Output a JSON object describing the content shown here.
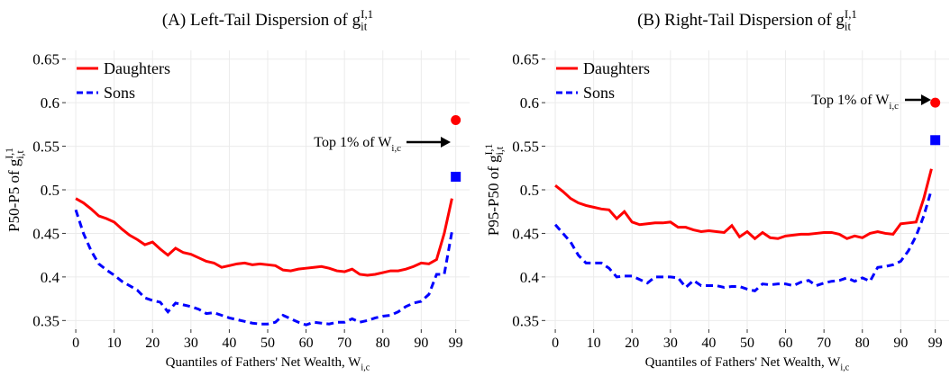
{
  "chart_data": [
    {
      "type": "line",
      "title": "(A) Left-Tail Dispersion of ",
      "title_var": "g",
      "title_sub": "it",
      "title_sup": "I,1",
      "ylabel": "P50-P5 of g",
      "ylabel_sup": "I,1",
      "ylabel_sub": "i,t",
      "xlabel": "Quantiles of Fathers' Net Wealth, W",
      "xlabel_sub": "i,c",
      "annotation": "Top 1% of W",
      "annotation_sub": "i,c",
      "legend": "upper left",
      "grid": true,
      "xlim": [
        -2.6,
        102.6
      ],
      "xticks": [
        0,
        10,
        20,
        30,
        40,
        50,
        60,
        70,
        80,
        90,
        99
      ],
      "ylim": [
        0.34,
        0.66
      ],
      "yticks": [
        0.35,
        0.4,
        0.45,
        0.5,
        0.55,
        0.6,
        0.65
      ],
      "x": [
        0,
        2,
        4,
        6,
        8,
        10,
        12,
        14,
        16,
        18,
        20,
        22,
        24,
        26,
        28,
        30,
        32,
        34,
        36,
        38,
        40,
        42,
        44,
        46,
        48,
        50,
        52,
        54,
        56,
        58,
        60,
        62,
        64,
        66,
        68,
        70,
        72,
        74,
        76,
        78,
        80,
        82,
        84,
        86,
        88,
        90,
        92,
        94,
        96,
        98
      ],
      "top1_x": 99,
      "series": [
        {
          "name": "Daughters",
          "color": "#ff0000",
          "dash": "solid",
          "marker": "circle",
          "top1": 0.58,
          "values": [
            0.49,
            0.485,
            0.478,
            0.47,
            0.467,
            0.463,
            0.455,
            0.448,
            0.443,
            0.437,
            0.44,
            0.432,
            0.425,
            0.433,
            0.428,
            0.426,
            0.422,
            0.418,
            0.416,
            0.411,
            0.413,
            0.415,
            0.416,
            0.414,
            0.415,
            0.414,
            0.413,
            0.408,
            0.407,
            0.409,
            0.41,
            0.411,
            0.412,
            0.41,
            0.407,
            0.406,
            0.409,
            0.403,
            0.402,
            0.403,
            0.405,
            0.407,
            0.407,
            0.409,
            0.412,
            0.416,
            0.415,
            0.42,
            0.45,
            0.49
          ]
        },
        {
          "name": "Sons",
          "color": "#0000ff",
          "dash": "dashed",
          "marker": "square",
          "top1": 0.515,
          "values": [
            0.477,
            0.45,
            0.43,
            0.415,
            0.408,
            0.402,
            0.395,
            0.39,
            0.385,
            0.376,
            0.373,
            0.371,
            0.36,
            0.37,
            0.368,
            0.366,
            0.363,
            0.358,
            0.359,
            0.356,
            0.353,
            0.351,
            0.349,
            0.347,
            0.346,
            0.346,
            0.348,
            0.356,
            0.352,
            0.348,
            0.345,
            0.348,
            0.347,
            0.346,
            0.348,
            0.348,
            0.352,
            0.348,
            0.35,
            0.353,
            0.355,
            0.356,
            0.36,
            0.366,
            0.37,
            0.372,
            0.38,
            0.403,
            0.403,
            0.452
          ]
        }
      ]
    },
    {
      "type": "line",
      "title": "(B) Right-Tail Dispersion of ",
      "title_var": "g",
      "title_sub": "it",
      "title_sup": "I,1",
      "ylabel": "P95-P50 of g",
      "ylabel_sup": "I,1",
      "ylabel_sub": "i,t",
      "xlabel": "Quantiles of Fathers' Net Wealth, W",
      "xlabel_sub": "i,c",
      "annotation": "Top 1% of W",
      "annotation_sub": "i,c",
      "legend": "upper left",
      "grid": true,
      "xlim": [
        -2.6,
        102.6
      ],
      "xticks": [
        0,
        10,
        20,
        30,
        40,
        50,
        60,
        70,
        80,
        90,
        99
      ],
      "ylim": [
        0.34,
        0.66
      ],
      "yticks": [
        0.35,
        0.4,
        0.45,
        0.5,
        0.55,
        0.6,
        0.65
      ],
      "x": [
        0,
        2,
        4,
        6,
        8,
        10,
        12,
        14,
        16,
        18,
        20,
        22,
        24,
        26,
        28,
        30,
        32,
        34,
        36,
        38,
        40,
        42,
        44,
        46,
        48,
        50,
        52,
        54,
        56,
        58,
        60,
        62,
        64,
        66,
        68,
        70,
        72,
        74,
        76,
        78,
        80,
        82,
        84,
        86,
        88,
        90,
        92,
        94,
        96,
        98
      ],
      "top1_x": 99,
      "series": [
        {
          "name": "Daughters",
          "color": "#ff0000",
          "dash": "solid",
          "marker": "circle",
          "top1": 0.6,
          "values": [
            0.505,
            0.498,
            0.49,
            0.485,
            0.482,
            0.48,
            0.478,
            0.477,
            0.467,
            0.475,
            0.463,
            0.46,
            0.461,
            0.462,
            0.462,
            0.463,
            0.457,
            0.457,
            0.454,
            0.452,
            0.453,
            0.452,
            0.451,
            0.459,
            0.446,
            0.452,
            0.444,
            0.451,
            0.445,
            0.444,
            0.447,
            0.448,
            0.449,
            0.449,
            0.45,
            0.451,
            0.451,
            0.449,
            0.444,
            0.447,
            0.445,
            0.45,
            0.452,
            0.45,
            0.449,
            0.461,
            0.462,
            0.463,
            0.49,
            0.524
          ]
        },
        {
          "name": "Sons",
          "color": "#0000ff",
          "dash": "dashed",
          "marker": "square",
          "top1": 0.557,
          "values": [
            0.46,
            0.45,
            0.44,
            0.425,
            0.416,
            0.416,
            0.416,
            0.41,
            0.4,
            0.401,
            0.401,
            0.397,
            0.393,
            0.4,
            0.4,
            0.4,
            0.399,
            0.388,
            0.396,
            0.39,
            0.39,
            0.39,
            0.388,
            0.389,
            0.389,
            0.386,
            0.384,
            0.392,
            0.391,
            0.392,
            0.392,
            0.39,
            0.394,
            0.396,
            0.39,
            0.393,
            0.395,
            0.396,
            0.399,
            0.395,
            0.399,
            0.395,
            0.411,
            0.412,
            0.414,
            0.418,
            0.43,
            0.447,
            0.47,
            0.5
          ]
        }
      ]
    }
  ]
}
